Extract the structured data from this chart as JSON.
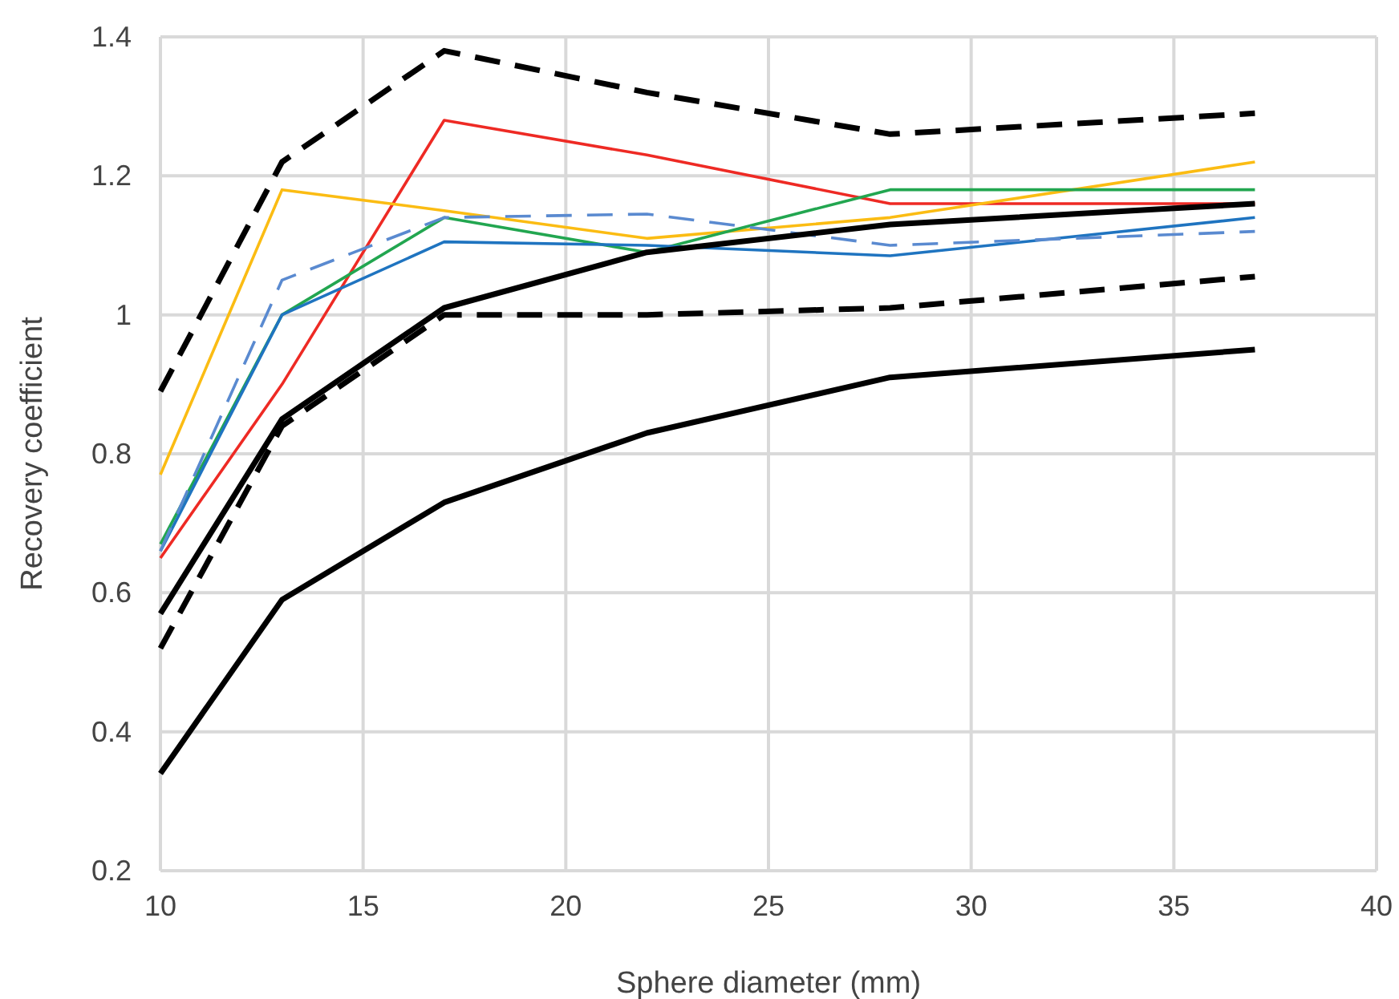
{
  "chart_data": {
    "type": "line",
    "xlabel": "Sphere diameter (mm)",
    "ylabel": "Recovery coefficient",
    "x": [
      10,
      13,
      17,
      22,
      28,
      37
    ],
    "xlim": [
      10,
      40
    ],
    "xticks": [
      10,
      15,
      20,
      25,
      30,
      35,
      40
    ],
    "ylim": [
      0.2,
      1.4
    ],
    "yticks": [
      0.2,
      0.4,
      0.6,
      0.8,
      1,
      1.2,
      1.4
    ],
    "grid": true,
    "marker": "none",
    "series": [
      {
        "color": "#000000",
        "line_style": "dashed",
        "values": [
          0.89,
          1.22,
          1.38,
          1.32,
          1.26,
          1.29
        ]
      },
      {
        "color": "#ee2a24",
        "line_style": "solid",
        "values": [
          0.65,
          0.9,
          1.28,
          1.23,
          1.16,
          1.16
        ]
      },
      {
        "color": "#fbbc13",
        "line_style": "solid",
        "values": [
          0.77,
          1.18,
          1.15,
          1.11,
          1.14,
          1.22
        ]
      },
      {
        "color": "#22a650",
        "line_style": "solid",
        "values": [
          0.67,
          1,
          1.14,
          1.09,
          1.18,
          1.18
        ]
      },
      {
        "color": "#1f74c0",
        "line_style": "solid",
        "values": [
          0.66,
          1,
          1.105,
          1.1,
          1.085,
          1.14
        ]
      },
      {
        "color": "#5a8ad0",
        "line_style": "dashed",
        "values": [
          0.66,
          1.05,
          1.14,
          1.145,
          1.1,
          1.12
        ]
      },
      {
        "color": "#000000",
        "line_style": "solid",
        "values": [
          0.57,
          0.85,
          1.01,
          1.09,
          1.13,
          1.16
        ]
      },
      {
        "color": "#000000",
        "line_style": "dashed",
        "values": [
          0.52,
          0.84,
          1,
          1,
          1.01,
          1.055
        ]
      },
      {
        "color": "#000000",
        "line_style": "solid",
        "values": [
          0.34,
          0.59,
          0.73,
          0.83,
          0.91,
          0.95
        ]
      }
    ]
  }
}
